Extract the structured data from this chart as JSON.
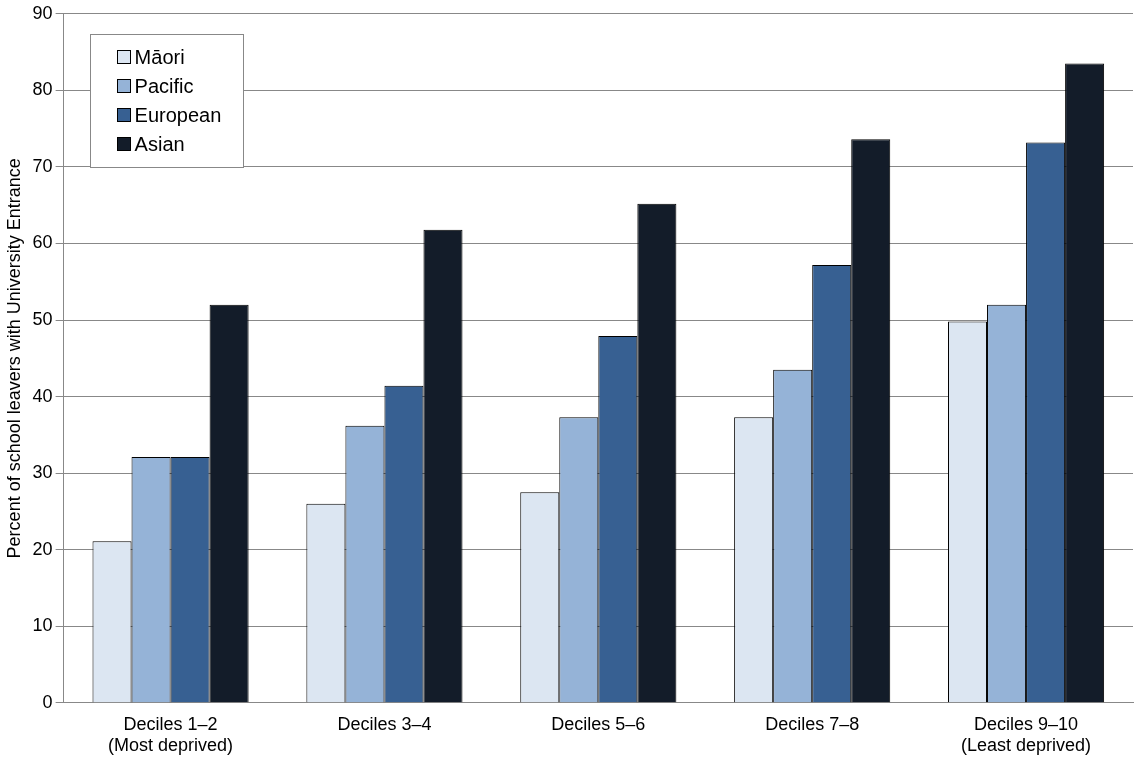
{
  "chart_data": {
    "type": "bar",
    "ylabel": "Percent of school leavers with University Entrance",
    "categories": [
      "Deciles 1–2\n(Most deprived)",
      "Deciles 3–4",
      "Deciles 5–6",
      "Deciles 7–8",
      "Deciles 9–10\n(Least deprived)"
    ],
    "series": [
      {
        "name": "Māori",
        "color": "#dce6f2",
        "values": [
          21.1,
          26.0,
          27.5,
          37.3,
          49.8
        ]
      },
      {
        "name": "Pacific",
        "color": "#95b3d7",
        "values": [
          32.1,
          36.2,
          37.3,
          43.5,
          52.0
        ]
      },
      {
        "name": "European",
        "color": "#376092",
        "values": [
          32.1,
          41.4,
          47.9,
          57.2,
          73.2
        ]
      },
      {
        "name": "Asian",
        "color": "#131c29",
        "values": [
          52.0,
          61.8,
          65.2,
          73.6,
          83.5
        ]
      }
    ],
    "ylim": [
      0,
      90
    ],
    "yticks": [
      0,
      10,
      20,
      30,
      40,
      50,
      60,
      70,
      80,
      90
    ],
    "grid": "y",
    "legend": "top left"
  }
}
